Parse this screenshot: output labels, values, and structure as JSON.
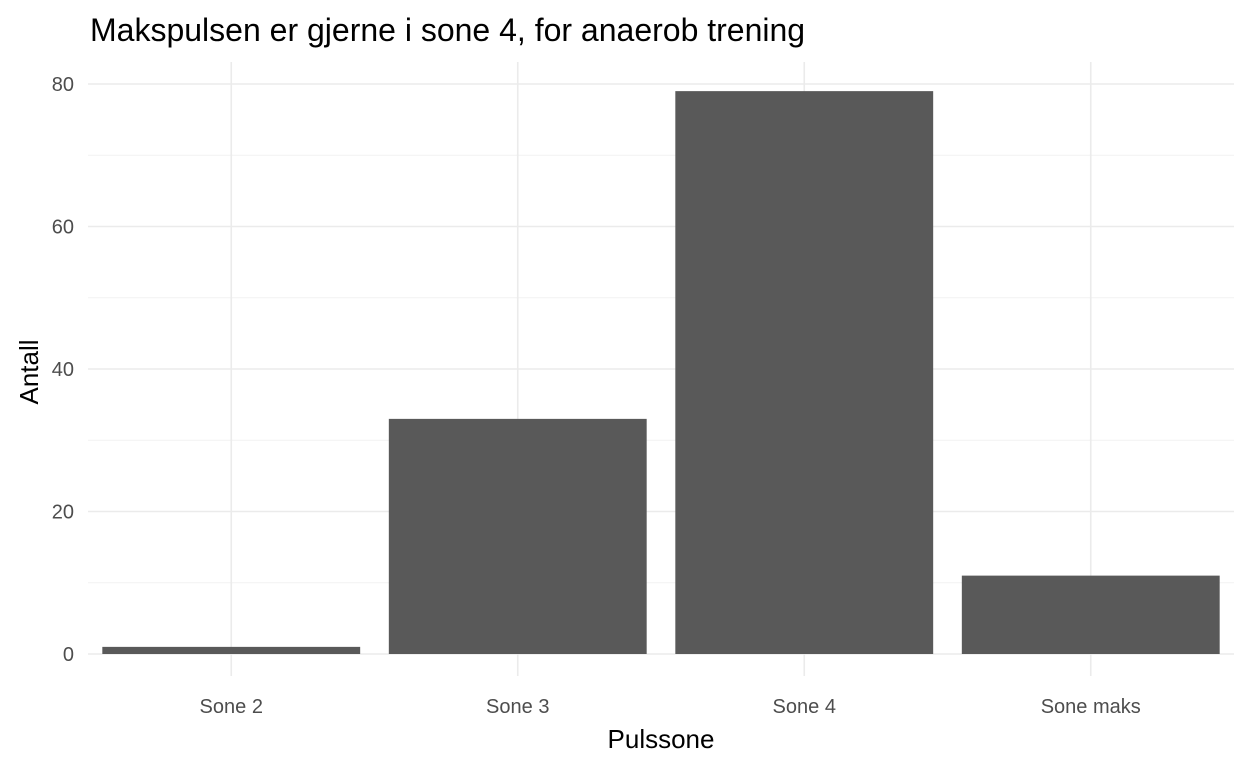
{
  "chart_data": {
    "type": "bar",
    "title": "Makspulsen er gjerne i sone 4, for anaerob trening",
    "xlabel": "Pulssone",
    "ylabel": "Antall",
    "categories": [
      "Sone 2",
      "Sone 3",
      "Sone 4",
      "Sone maks"
    ],
    "values": [
      1,
      33,
      79,
      11
    ],
    "ylim": [
      0,
      83
    ],
    "yticks": [
      0,
      20,
      40,
      60,
      80
    ],
    "grid": true,
    "legend": "none",
    "bar_color": "#595959",
    "background": "#ffffff"
  }
}
